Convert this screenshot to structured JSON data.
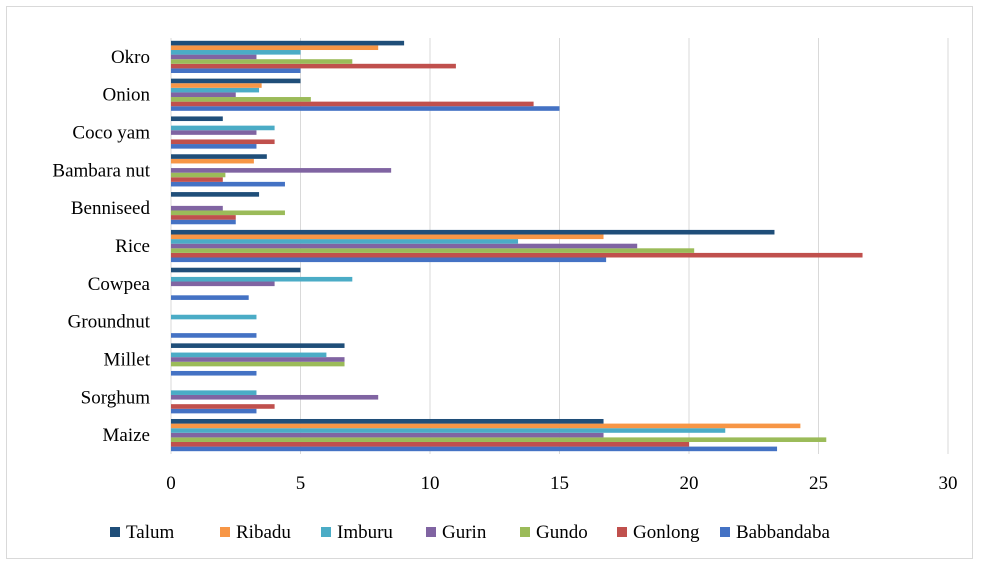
{
  "chart_data": {
    "type": "bar",
    "orientation": "horizontal",
    "categories": [
      "Maize",
      "Sorghum",
      "Millet",
      "Groundnut",
      "Cowpea",
      "Rice",
      "Benniseed",
      "Bambara nut",
      "Coco yam",
      "Onion",
      "Okro"
    ],
    "series": [
      {
        "name": "Babbandaba",
        "color": "#4472c4",
        "values": [
          23.4,
          3.3,
          3.3,
          3.3,
          3.0,
          16.8,
          2.5,
          4.4,
          3.3,
          15.0,
          5.0
        ]
      },
      {
        "name": "Gonlong",
        "color": "#c0504d",
        "values": [
          20.0,
          4.0,
          0,
          0,
          0,
          26.7,
          2.5,
          2.0,
          4.0,
          14.0,
          11.0
        ]
      },
      {
        "name": "Gundo",
        "color": "#9bbb59",
        "values": [
          25.3,
          0,
          6.7,
          0,
          0,
          20.2,
          4.4,
          2.1,
          0,
          5.4,
          7.0
        ]
      },
      {
        "name": "Gurin",
        "color": "#8064a2",
        "values": [
          16.7,
          8.0,
          6.7,
          0,
          4.0,
          18.0,
          2.0,
          8.5,
          3.3,
          2.5,
          3.3
        ]
      },
      {
        "name": "Imburu",
        "color": "#4bacc6",
        "values": [
          21.4,
          3.3,
          6.0,
          3.3,
          7.0,
          13.4,
          0,
          0,
          4.0,
          3.4,
          5.0
        ]
      },
      {
        "name": "Ribadu",
        "color": "#f79646",
        "values": [
          24.3,
          0,
          0,
          0,
          0,
          16.7,
          0,
          3.2,
          0,
          3.5,
          8.0
        ]
      },
      {
        "name": "Talum",
        "color": "#1f4e79",
        "values": [
          16.7,
          0,
          6.7,
          0,
          5.0,
          23.3,
          3.4,
          3.7,
          2.0,
          5.0,
          9.0
        ]
      }
    ],
    "legend_order": [
      "Talum",
      "Ribadu",
      "Imburu",
      "Gurin",
      "Gundo",
      "Gonlong",
      "Babbandaba"
    ],
    "xlim": [
      0,
      30
    ],
    "xticks": [
      "0",
      "5",
      "10",
      "15",
      "20",
      "25",
      "30"
    ],
    "grid": true,
    "legend_position": "bottom",
    "title": "",
    "xlabel": "",
    "ylabel": ""
  }
}
